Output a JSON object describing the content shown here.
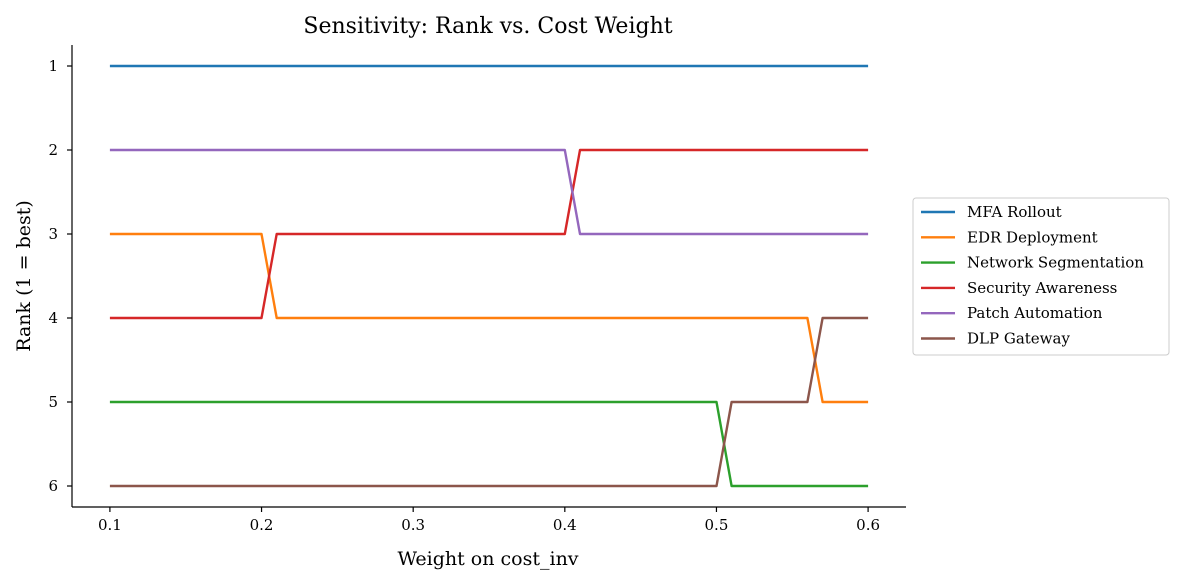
{
  "chart_data": {
    "type": "line",
    "title": "Sensitivity: Rank vs. Cost Weight",
    "xlabel": "Weight on cost_inv",
    "ylabel": "Rank (1 = best)",
    "xlim": [
      0.075,
      0.625
    ],
    "ylim": [
      6.25,
      0.75
    ],
    "y_inverted": true,
    "xticks": [
      "0.1",
      "0.2",
      "0.3",
      "0.4",
      "0.5",
      "0.6"
    ],
    "xtick_values": [
      0.1,
      0.2,
      0.3,
      0.4,
      0.5,
      0.6
    ],
    "yticks": [
      "1",
      "2",
      "3",
      "4",
      "5",
      "6"
    ],
    "ytick_values": [
      1,
      2,
      3,
      4,
      5,
      6
    ],
    "grid": false,
    "legend_position": "right-outside",
    "series": [
      {
        "name": "MFA Rollout",
        "color": "#1f77b4",
        "x": [
          0.1,
          0.6
        ],
        "y": [
          1,
          1
        ]
      },
      {
        "name": "EDR Deployment",
        "color": "#ff7f0e",
        "x": [
          0.1,
          0.2,
          0.21,
          0.56,
          0.57,
          0.6
        ],
        "y": [
          3,
          3,
          4,
          4,
          5,
          5
        ]
      },
      {
        "name": "Network Segmentation",
        "color": "#2ca02c",
        "x": [
          0.1,
          0.5,
          0.51,
          0.6
        ],
        "y": [
          5,
          5,
          6,
          6
        ]
      },
      {
        "name": "Security Awareness",
        "color": "#d62728",
        "x": [
          0.1,
          0.2,
          0.21,
          0.4,
          0.41,
          0.6
        ],
        "y": [
          4,
          4,
          3,
          3,
          2,
          2
        ]
      },
      {
        "name": "Patch Automation",
        "color": "#9467bd",
        "x": [
          0.1,
          0.4,
          0.41,
          0.6
        ],
        "y": [
          2,
          2,
          3,
          3
        ]
      },
      {
        "name": "DLP Gateway",
        "color": "#8c564b",
        "x": [
          0.1,
          0.5,
          0.51,
          0.56,
          0.57,
          0.6
        ],
        "y": [
          6,
          6,
          5,
          5,
          4,
          4
        ]
      }
    ]
  }
}
